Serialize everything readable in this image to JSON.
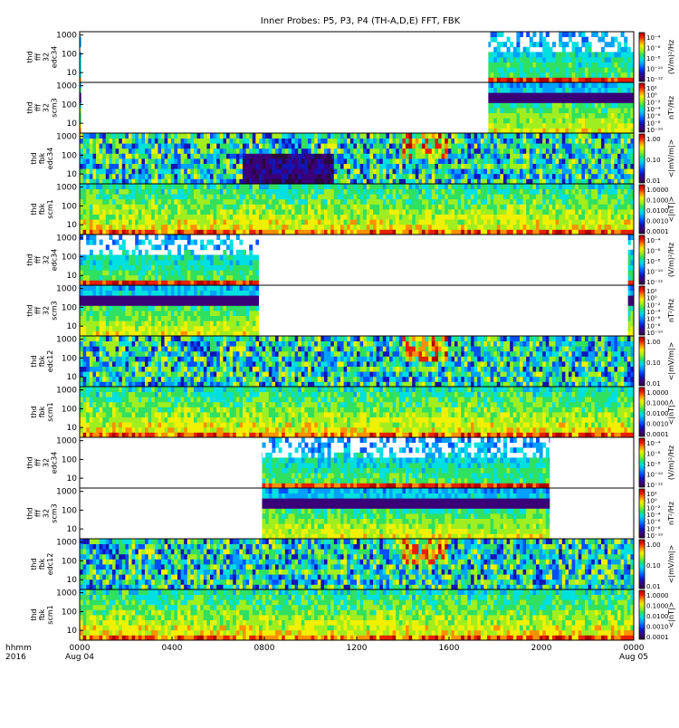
{
  "title": "Inner Probes: P5, P3, P4 (TH-A,D,E) FFT, FBK",
  "colors": {
    "background": "#ffffff",
    "axis": "#000000",
    "colormap": [
      "#ffffff",
      "#2a0a3a",
      "#3a0078",
      "#1414b4",
      "#0050ff",
      "#00a0ff",
      "#00e0e0",
      "#30e060",
      "#a0ee20",
      "#f0f000",
      "#ff9000",
      "#e82000",
      "#b00000"
    ]
  },
  "chart_data": {
    "type": "heatmap",
    "title": "Inner Probes: P5, P3, P4 (TH-A,D,E) FFT, FBK",
    "x_axis": {
      "label": "hhmm 2016",
      "label_lines": [
        "hhmm",
        "2016"
      ],
      "ticks": [
        "0000",
        "0400",
        "0800",
        "1200",
        "1600",
        "2000",
        "0000"
      ],
      "tick_sublabels": [
        "Aug 04",
        "",
        "",
        "",
        "",
        "",
        "Aug 05"
      ],
      "range_hours": [
        0,
        24
      ]
    },
    "y_axis": {
      "scale": "log",
      "range": [
        3,
        1500
      ],
      "ticks": [
        "10",
        "100",
        "1000"
      ]
    },
    "panels": [
      {
        "ylabel": [
          "thd",
          "fff",
          "32",
          "edc34"
        ],
        "colorbar": {
          "label": "(V/m)²/Hz",
          "ticks": [
            "10⁻⁴",
            "10⁻⁶",
            "10⁻⁸",
            "10⁻¹⁰",
            "10⁻¹²"
          ]
        },
        "kind": "fff",
        "coverage_hours": [
          [
            0,
            0.05
          ],
          [
            17.7,
            24
          ]
        ]
      },
      {
        "ylabel": [
          "thd",
          "fff",
          "32",
          "scm3"
        ],
        "colorbar": {
          "label": "nT²/Hz",
          "ticks": [
            "10²",
            "10⁰",
            "10⁻²",
            "10⁻⁴",
            "10⁻⁶",
            "10⁻⁸",
            "10⁻¹⁰"
          ]
        },
        "kind": "fff_scm",
        "coverage_hours": [
          [
            0,
            0.05
          ],
          [
            17.7,
            24
          ]
        ]
      },
      {
        "ylabel": [
          "thd",
          "fbk",
          "edc34"
        ],
        "colorbar": {
          "label": "<|mV/m|>",
          "ticks": [
            "1.00",
            "0.10",
            "0.01"
          ]
        },
        "kind": "fbk",
        "coverage_hours": [
          [
            0,
            24
          ]
        ]
      },
      {
        "ylabel": [
          "thd",
          "fbk",
          "scm1"
        ],
        "colorbar": {
          "label": "<|nT|>",
          "ticks": [
            "1.0000",
            "0.1000",
            "0.0100",
            "0.0010",
            "0.0001"
          ]
        },
        "kind": "fbk_scm",
        "coverage_hours": [
          [
            0,
            24
          ]
        ]
      },
      {
        "ylabel": [
          "thd",
          "fff",
          "32",
          "edc34"
        ],
        "colorbar": {
          "label": "(V/m)²/Hz",
          "ticks": [
            "10⁻⁴",
            "10⁻⁶",
            "10⁻⁸",
            "10⁻¹⁰",
            "10⁻¹²"
          ]
        },
        "kind": "fff",
        "coverage_hours": [
          [
            0,
            7.75
          ],
          [
            23.75,
            24
          ]
        ]
      },
      {
        "ylabel": [
          "thd",
          "fff",
          "32",
          "scm3"
        ],
        "colorbar": {
          "label": "nT²/Hz",
          "ticks": [
            "10²",
            "10⁰",
            "10⁻²",
            "10⁻⁴",
            "10⁻⁶",
            "10⁻⁸",
            "10⁻¹⁰"
          ]
        },
        "kind": "fff_scm",
        "coverage_hours": [
          [
            0,
            7.75
          ],
          [
            23.75,
            24
          ]
        ]
      },
      {
        "ylabel": [
          "thd",
          "fbk",
          "edc12"
        ],
        "colorbar": {
          "label": "<|mV/m|>",
          "ticks": [
            "1.00",
            "0.10",
            "0.01"
          ]
        },
        "kind": "fbk",
        "coverage_hours": [
          [
            0,
            24
          ]
        ]
      },
      {
        "ylabel": [
          "thd",
          "fbk",
          "scm1"
        ],
        "colorbar": {
          "label": "<|nT|>",
          "ticks": [
            "1.0000",
            "0.1000",
            "0.0100",
            "0.0010",
            "0.0001"
          ]
        },
        "kind": "fbk_scm",
        "coverage_hours": [
          [
            0,
            24
          ]
        ]
      },
      {
        "ylabel": [
          "thd",
          "fff",
          "32",
          "edc34"
        ],
        "colorbar": {
          "label": "(V/m)²/Hz",
          "ticks": [
            "10⁻⁴",
            "10⁻⁶",
            "10⁻⁸",
            "10⁻¹⁰",
            "10⁻¹²"
          ]
        },
        "kind": "fff",
        "coverage_hours": [
          [
            7.9,
            20.35
          ]
        ]
      },
      {
        "ylabel": [
          "thd",
          "fff",
          "32",
          "scm3"
        ],
        "colorbar": {
          "label": "nT²/Hz",
          "ticks": [
            "10²",
            "10⁰",
            "10⁻²",
            "10⁻⁴",
            "10⁻⁶",
            "10⁻⁸",
            "10⁻¹⁰"
          ]
        },
        "kind": "fff_scm",
        "coverage_hours": [
          [
            7.9,
            20.35
          ]
        ]
      },
      {
        "ylabel": [
          "thd",
          "fbk",
          "edc12"
        ],
        "colorbar": {
          "label": "<|mV/m|>",
          "ticks": [
            "1.00",
            "0.10",
            "0.01"
          ]
        },
        "kind": "fbk",
        "coverage_hours": [
          [
            0,
            24
          ]
        ]
      },
      {
        "ylabel": [
          "thd",
          "fbk",
          "scm1"
        ],
        "colorbar": {
          "label": "<|nT|>",
          "ticks": [
            "1.0000",
            "0.1000",
            "0.0100",
            "0.0010",
            "0.0001"
          ]
        },
        "kind": "fbk_scm",
        "coverage_hours": [
          [
            0,
            24
          ]
        ]
      }
    ]
  }
}
